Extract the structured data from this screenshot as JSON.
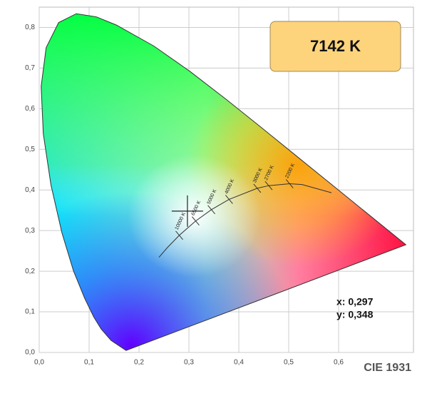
{
  "chart_data": {
    "type": "chromaticity",
    "cct_label": "7142 K",
    "footer": "CIE 1931",
    "xlim": [
      0,
      0.75
    ],
    "ylim": [
      0,
      0.85
    ],
    "xticks": [
      {
        "value": 0,
        "label": "0,0"
      },
      {
        "value": 0.1,
        "label": "0,1"
      },
      {
        "value": 0.2,
        "label": "0,2"
      },
      {
        "value": 0.3,
        "label": "0,3"
      },
      {
        "value": 0.4,
        "label": "0,4"
      },
      {
        "value": 0.5,
        "label": "0,5"
      },
      {
        "value": 0.6,
        "label": "0,6"
      }
    ],
    "yticks": [
      {
        "value": 0,
        "label": "0,0"
      },
      {
        "value": 0.1,
        "label": "0,1"
      },
      {
        "value": 0.2,
        "label": "0,2"
      },
      {
        "value": 0.3,
        "label": "0,3"
      },
      {
        "value": 0.4,
        "label": "0,4"
      },
      {
        "value": 0.5,
        "label": "0,5"
      },
      {
        "value": 0.6,
        "label": "0,6"
      },
      {
        "value": 0.7,
        "label": "0,7"
      },
      {
        "value": 0.8,
        "label": "0,8"
      }
    ],
    "grid": true,
    "locus": {
      "x": [
        0.1741,
        0.144,
        0.1241,
        0.1096,
        0.0913,
        0.0687,
        0.0454,
        0.0235,
        0.0082,
        0.0039,
        0.0139,
        0.0389,
        0.0743,
        0.1142,
        0.1547,
        0.2296,
        0.3016,
        0.3731,
        0.4441,
        0.5125,
        0.5752,
        0.627,
        0.6915,
        0.7347
      ],
      "y": [
        0.005,
        0.0297,
        0.0578,
        0.0868,
        0.1327,
        0.2007,
        0.295,
        0.4127,
        0.5384,
        0.6548,
        0.7502,
        0.812,
        0.8338,
        0.8262,
        0.8059,
        0.7543,
        0.6923,
        0.6245,
        0.5547,
        0.4866,
        0.4242,
        0.3725,
        0.3083,
        0.2653
      ]
    },
    "planckian": {
      "x": [
        0.2399,
        0.2565,
        0.2807,
        0.3135,
        0.3451,
        0.3805,
        0.4369,
        0.4599,
        0.5018,
        0.5267,
        0.5857
      ],
      "y": [
        0.2342,
        0.2577,
        0.2884,
        0.3236,
        0.3516,
        0.3768,
        0.4041,
        0.4106,
        0.4153,
        0.4133,
        0.3931
      ],
      "labels": [
        null,
        null,
        "10000 K",
        "6500 K",
        "5000 K",
        "4000 K",
        "3000 K",
        "2700 K",
        "2200 K",
        null,
        null
      ]
    },
    "point": {
      "x": 0.297,
      "y": 0.348,
      "x_label": "x: 0,297",
      "y_label": "y: 0,348"
    }
  }
}
